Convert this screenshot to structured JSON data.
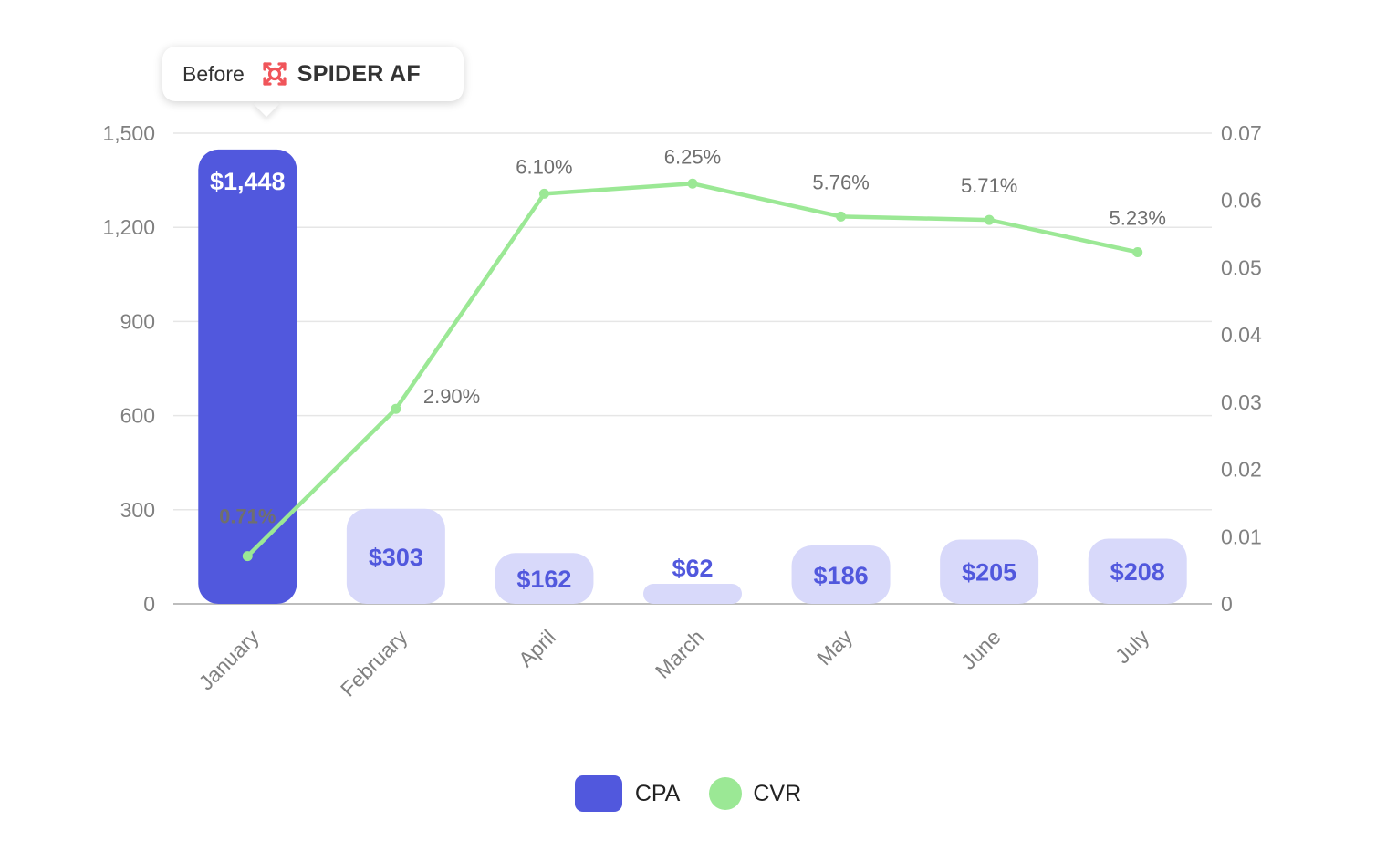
{
  "chart_data": {
    "type": "bar",
    "categories": [
      "January",
      "February",
      "April",
      "March",
      "May",
      "June",
      "July"
    ],
    "series": [
      {
        "name": "CPA",
        "type": "bar",
        "axis": "left",
        "color": "#5158dd",
        "highlight_color": "#5158dd",
        "muted_color": "#d8d9fa",
        "label_color_muted": "#5158dd",
        "label_color_highlight": "#ffffff",
        "highlight_index": 0,
        "values": [
          1448,
          303,
          162,
          62,
          186,
          205,
          208
        ],
        "labels": [
          "$1,448",
          "$303",
          "$162",
          "$62",
          "$186",
          "$205",
          "$208"
        ]
      },
      {
        "name": "CVR",
        "type": "line",
        "axis": "right",
        "color": "#9be895",
        "values": [
          0.0071,
          0.029,
          0.061,
          0.0625,
          0.0576,
          0.0571,
          0.0523
        ],
        "labels": [
          "0.71%",
          "2.90%",
          "6.10%",
          "6.25%",
          "5.76%",
          "5.71%",
          "5.23%"
        ]
      }
    ],
    "y_left": {
      "ylim": [
        0,
        1500
      ],
      "ticks": [
        0,
        300,
        600,
        900,
        1200,
        1500
      ],
      "tick_labels": [
        "0",
        "300",
        "600",
        "900",
        "1,200",
        "1,500"
      ]
    },
    "y_right": {
      "ylim": [
        0,
        0.07
      ],
      "ticks": [
        0,
        0.01,
        0.02,
        0.03,
        0.04,
        0.05,
        0.06,
        0.07
      ],
      "tick_labels": [
        "0",
        "0.01",
        "0.02",
        "0.03",
        "0.04",
        "0.05",
        "0.06",
        "0.07"
      ]
    },
    "grid": true,
    "legend": {
      "position": "bottom-center",
      "items": [
        {
          "label": "CPA",
          "color": "#5158dd",
          "shape": "rounded-square"
        },
        {
          "label": "CVR",
          "color": "#9be895",
          "shape": "circle"
        }
      ]
    }
  },
  "tooltip": {
    "before_text": "Before",
    "brand_text": "SPIDER AF",
    "logo_icon": "spider-af-logo-icon",
    "logo_color": "#f0555a"
  },
  "colors": {
    "grid": "#e6e6e6",
    "axis": "#bdbdbd",
    "tick_text": "#808080"
  }
}
